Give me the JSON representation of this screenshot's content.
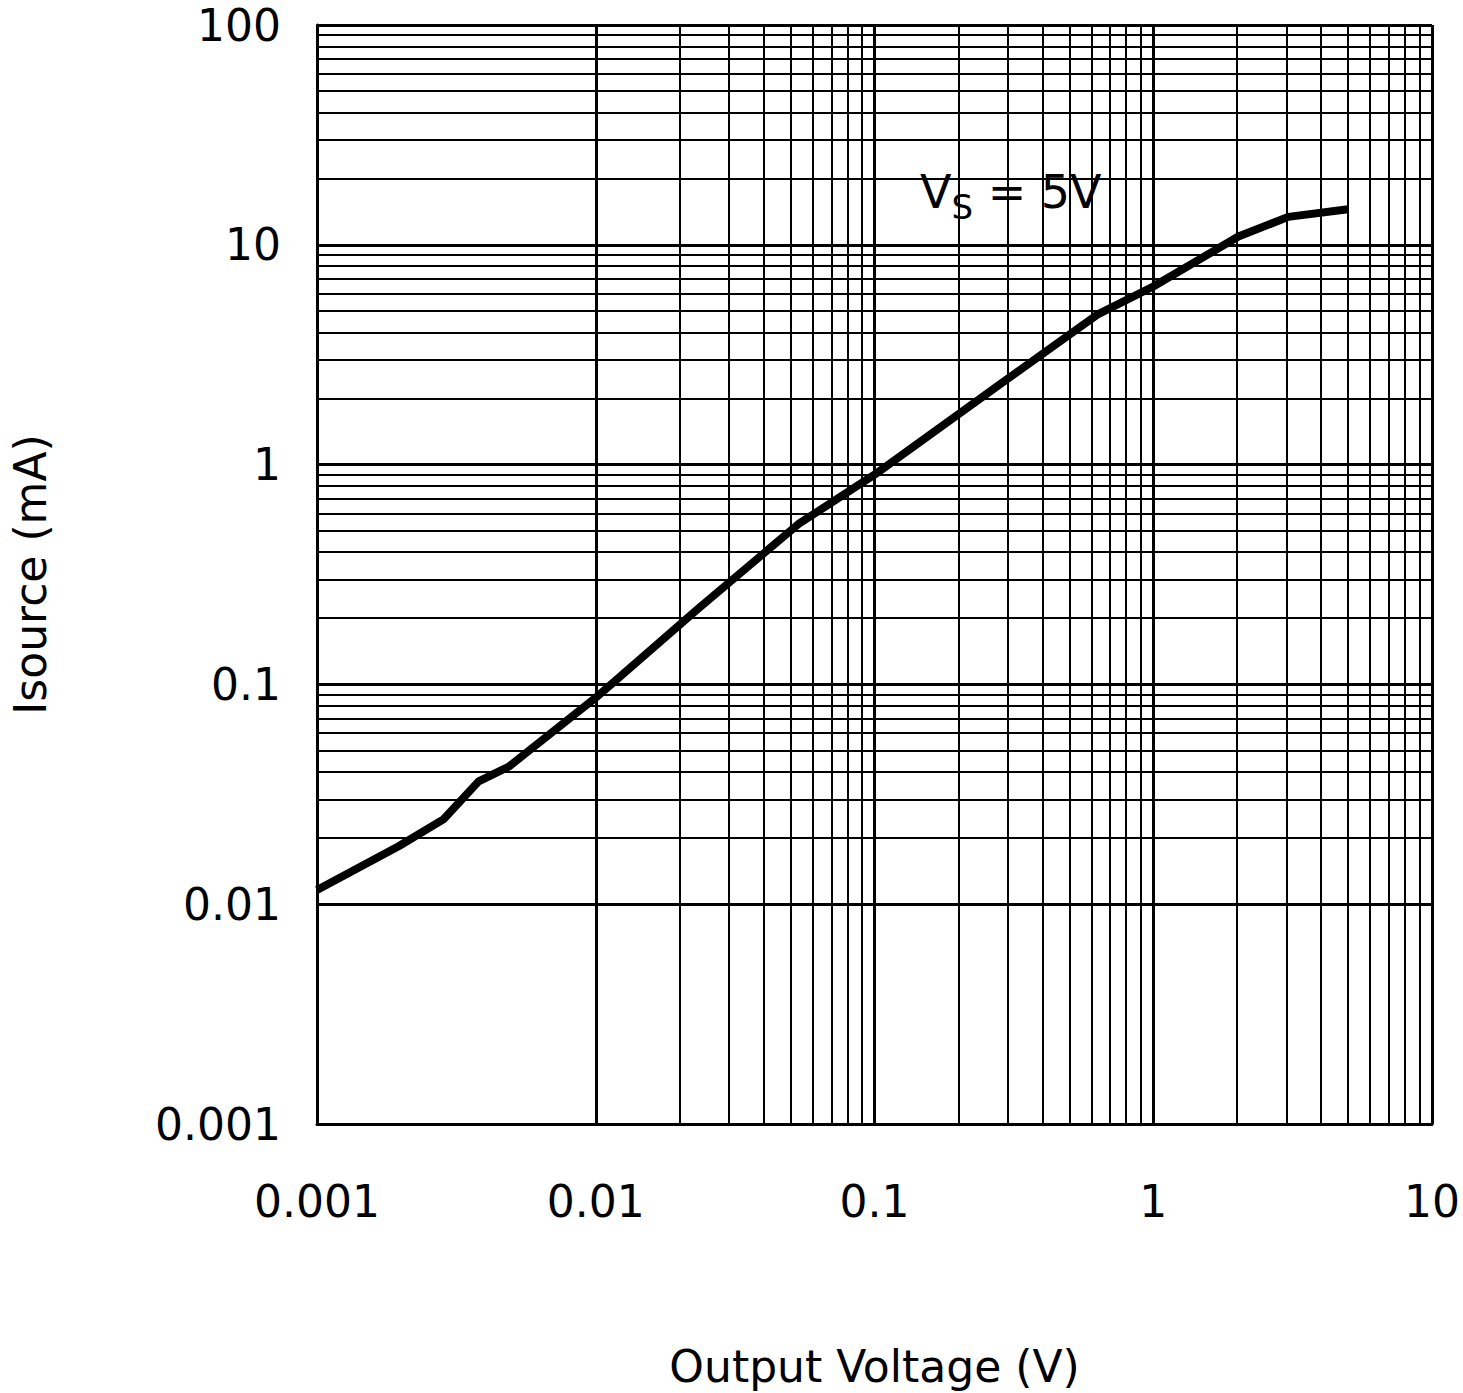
{
  "chart_data": {
    "type": "line",
    "x_label": "Output Voltage (V)",
    "y_label": "Isource (mA)",
    "annotation": {
      "text": "V",
      "subscript": "S",
      "suffix": " = 5V"
    },
    "x": [
      0.001,
      0.00197,
      0.00285,
      0.0038,
      0.00488,
      0.01,
      0.0234,
      0.0534,
      0.1,
      0.278,
      0.635,
      1,
      2.02,
      3.05,
      5.0
    ],
    "values": [
      0.0116,
      0.0184,
      0.0244,
      0.0362,
      0.0423,
      0.087,
      0.222,
      0.537,
      0.9,
      2.29,
      4.84,
      6.46,
      10.9,
      13.4,
      14.5
    ],
    "color": "#000000",
    "xlim": [
      0.001,
      10
    ],
    "ylim": [
      0.001,
      100
    ],
    "xticks": [
      0.001,
      0.01,
      0.1,
      1,
      10
    ],
    "yticks": [
      0.001,
      0.01,
      0.1,
      1,
      10,
      100
    ],
    "log": true,
    "grid": true
  }
}
